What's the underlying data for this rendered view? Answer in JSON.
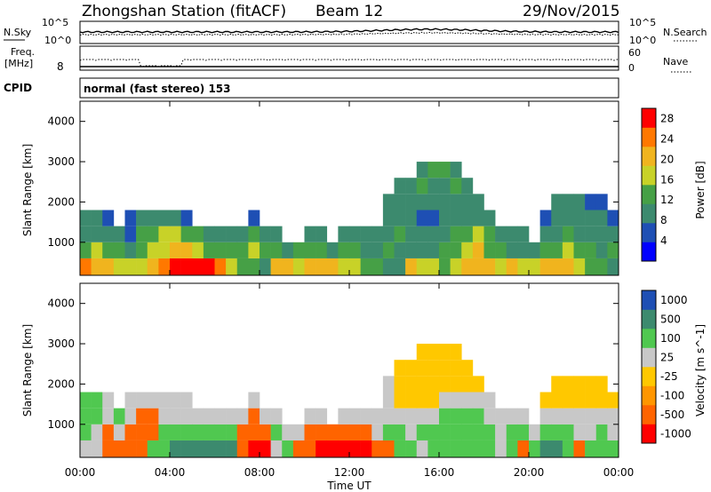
{
  "header": {
    "station": "Zhongshan Station (fitACF)",
    "beam": "Beam 12",
    "date": "29/Nov/2015"
  },
  "top_panels": {
    "nsky_label": "N.Sky",
    "nsky_ticks": [
      "10^5",
      "10^0"
    ],
    "nsearch_label": "N.Search",
    "nsearch_ticks": [
      "10^5",
      "10^0"
    ],
    "freq_label": "Freq.",
    "freq_unit": "[MHz]",
    "freq_ticks": [
      "8"
    ],
    "nave_label": "Nave",
    "nave_ticks": [
      "60",
      "0"
    ],
    "cpid_label": "CPID",
    "cpid_text": "normal (fast stereo) 153"
  },
  "colors": {
    "power_scale": [
      "#0000ff",
      "#1e4fb4",
      "#3c8a6e",
      "#46a046",
      "#c8d228",
      "#f0b41e",
      "#ff7800",
      "#ff0000"
    ],
    "velocity_scale": [
      "#ff0000",
      "#ff6400",
      "#ff9600",
      "#ffc800",
      "#c8c8c8",
      "#50c850",
      "#3c8a6e",
      "#1e4fb4"
    ]
  },
  "chart_data": [
    {
      "type": "heatmap",
      "panel": "power",
      "ylabel": "Slant Range [km]",
      "y_ticks": [
        "1000",
        "2000",
        "3000",
        "4000"
      ],
      "ylim": [
        180,
        4500
      ],
      "colorbar": {
        "label": "Power [dB]",
        "ticks": [
          "4",
          "8",
          "12",
          "16",
          "20",
          "24",
          "28"
        ],
        "range": [
          0,
          30
        ]
      },
      "x_hours": [
        0,
        0.5,
        1,
        1.5,
        2,
        2.5,
        3,
        3.5,
        4,
        4.5,
        5,
        5.5,
        6,
        6.5,
        7,
        7.5,
        8,
        8.5,
        9,
        9.5,
        10,
        10.5,
        11,
        11.5,
        12,
        12.5,
        13,
        13.5,
        14,
        14.5,
        15,
        15.5,
        16,
        16.5,
        17,
        17.5,
        18,
        18.5,
        19,
        19.5,
        20,
        20.5,
        21,
        21.5,
        22,
        22.5,
        23,
        23.5
      ],
      "range_bins_km": [
        400,
        800,
        1200,
        1600,
        2000,
        2400,
        2800
      ],
      "values_db": [
        [
          24,
          14,
          10,
          10,
          0,
          0,
          0
        ],
        [
          22,
          16,
          10,
          8,
          0,
          0,
          0
        ],
        [
          20,
          12,
          8,
          6,
          0,
          0,
          0
        ],
        [
          18,
          12,
          8,
          0,
          0,
          0,
          0
        ],
        [
          16,
          10,
          6,
          6,
          0,
          0,
          0
        ],
        [
          18,
          14,
          12,
          8,
          0,
          0,
          0
        ],
        [
          22,
          16,
          14,
          8,
          0,
          0,
          0
        ],
        [
          26,
          18,
          16,
          8,
          0,
          0,
          0
        ],
        [
          28,
          20,
          16,
          8,
          0,
          0,
          0
        ],
        [
          28,
          22,
          14,
          6,
          0,
          0,
          0
        ],
        [
          28,
          18,
          12,
          0,
          0,
          0,
          0
        ],
        [
          28,
          14,
          10,
          0,
          0,
          0,
          0
        ],
        [
          24,
          12,
          8,
          0,
          0,
          0,
          0
        ],
        [
          16,
          12,
          8,
          0,
          0,
          0,
          0
        ],
        [
          12,
          14,
          10,
          0,
          0,
          0,
          0
        ],
        [
          12,
          16,
          12,
          6,
          0,
          0,
          0
        ],
        [
          10,
          12,
          8,
          0,
          0,
          0,
          0
        ],
        [
          22,
          12,
          8,
          0,
          0,
          0,
          0
        ],
        [
          20,
          8,
          0,
          0,
          0,
          0,
          0
        ],
        [
          18,
          12,
          0,
          0,
          0,
          0,
          0
        ],
        [
          22,
          14,
          8,
          0,
          0,
          0,
          0
        ],
        [
          20,
          12,
          8,
          0,
          0,
          0,
          0
        ],
        [
          22,
          10,
          0,
          0,
          0,
          0,
          0
        ],
        [
          18,
          12,
          8,
          0,
          0,
          0,
          0
        ],
        [
          16,
          12,
          8,
          0,
          0,
          0,
          0
        ],
        [
          12,
          10,
          8,
          0,
          0,
          0,
          0
        ],
        [
          14,
          10,
          8,
          0,
          0,
          0,
          0
        ],
        [
          10,
          12,
          8,
          8,
          8,
          0,
          0
        ],
        [
          8,
          10,
          12,
          10,
          10,
          8,
          0
        ],
        [
          22,
          10,
          8,
          8,
          8,
          8,
          0
        ],
        [
          18,
          10,
          8,
          6,
          10,
          12,
          8
        ],
        [
          16,
          10,
          8,
          6,
          8,
          10,
          12
        ],
        [
          14,
          12,
          10,
          8,
          8,
          10,
          12
        ],
        [
          16,
          14,
          12,
          10,
          8,
          12,
          10
        ],
        [
          20,
          18,
          14,
          10,
          8,
          8,
          0
        ],
        [
          22,
          20,
          16,
          8,
          8,
          0,
          0
        ],
        [
          20,
          14,
          12,
          8,
          0,
          0,
          0
        ],
        [
          18,
          12,
          8,
          0,
          0,
          0,
          0
        ],
        [
          22,
          10,
          8,
          0,
          0,
          0,
          0
        ],
        [
          16,
          10,
          8,
          0,
          0,
          0,
          0
        ],
        [
          18,
          10,
          0,
          0,
          0,
          0,
          0
        ],
        [
          20,
          12,
          8,
          6,
          0,
          0,
          0
        ],
        [
          22,
          14,
          10,
          8,
          8,
          0,
          0
        ],
        [
          20,
          16,
          12,
          8,
          8,
          0,
          0
        ],
        [
          16,
          12,
          10,
          8,
          8,
          0,
          0
        ],
        [
          14,
          12,
          10,
          8,
          6,
          0,
          0
        ],
        [
          12,
          10,
          8,
          8,
          6,
          0,
          0
        ],
        [
          10,
          12,
          10,
          6,
          0,
          0,
          0
        ]
      ]
    },
    {
      "type": "heatmap",
      "panel": "velocity",
      "ylabel": "Slant Range [km]",
      "xlabel": "Time UT",
      "x_ticks": [
        "00:00",
        "04:00",
        "08:00",
        "12:00",
        "16:00",
        "20:00",
        "00:00"
      ],
      "y_ticks": [
        "1000",
        "2000",
        "3000",
        "4000"
      ],
      "ylim": [
        180,
        4500
      ],
      "colorbar": {
        "label": "Velocity [m s^-1]",
        "ticks": [
          "1000",
          "500",
          "100",
          "25",
          "-25",
          "-100",
          "-500",
          "-1000"
        ]
      },
      "x_hours": [
        0,
        0.5,
        1,
        1.5,
        2,
        2.5,
        3,
        3.5,
        4,
        4.5,
        5,
        5.5,
        6,
        6.5,
        7,
        7.5,
        8,
        8.5,
        9,
        9.5,
        10,
        10.5,
        11,
        11.5,
        12,
        12.5,
        13,
        13.5,
        14,
        14.5,
        15,
        15.5,
        16,
        16.5,
        17,
        17.5,
        18,
        18.5,
        19,
        19.5,
        20,
        20.5,
        21,
        21.5,
        22,
        22.5,
        23,
        23.5
      ],
      "range_bins_km": [
        400,
        800,
        1200,
        1600,
        2000,
        2400,
        2800
      ],
      "values_ms": [
        [
          100,
          200,
          150,
          150,
          0,
          0,
          0
        ],
        [
          50,
          100,
          200,
          150,
          0,
          0,
          0
        ],
        [
          -100,
          -200,
          100,
          100,
          0,
          0,
          0
        ],
        [
          -150,
          100,
          150,
          0,
          0,
          0,
          0
        ],
        [
          -150,
          -200,
          100,
          100,
          0,
          0,
          0
        ],
        [
          -200,
          -150,
          -200,
          100,
          0,
          0,
          0
        ],
        [
          200,
          -200,
          -150,
          100,
          0,
          0,
          0
        ],
        [
          300,
          200,
          100,
          100,
          0,
          0,
          0
        ],
        [
          700,
          200,
          100,
          100,
          0,
          0,
          0
        ],
        [
          700,
          400,
          100,
          100,
          0,
          0,
          0
        ],
        [
          600,
          400,
          100,
          0,
          0,
          0,
          0
        ],
        [
          800,
          300,
          100,
          0,
          0,
          0,
          0
        ],
        [
          900,
          500,
          100,
          0,
          0,
          0,
          0
        ],
        [
          800,
          200,
          100,
          0,
          0,
          0,
          0
        ],
        [
          -300,
          -200,
          100,
          0,
          0,
          0,
          0
        ],
        [
          -600,
          -400,
          -200,
          100,
          0,
          0,
          0
        ],
        [
          -500,
          -300,
          100,
          0,
          0,
          0,
          0
        ],
        [
          100,
          200,
          100,
          0,
          0,
          0,
          0
        ],
        [
          200,
          100,
          0,
          0,
          0,
          0,
          0
        ],
        [
          -300,
          100,
          0,
          0,
          0,
          0,
          0
        ],
        [
          -400,
          -200,
          100,
          0,
          0,
          0,
          0
        ],
        [
          -700,
          -300,
          100,
          0,
          0,
          0,
          0
        ],
        [
          -800,
          -200,
          0,
          0,
          0,
          0,
          0
        ],
        [
          -700,
          -400,
          100,
          0,
          0,
          0,
          0
        ],
        [
          -800,
          -300,
          100,
          0,
          0,
          0,
          0
        ],
        [
          -600,
          -200,
          100,
          0,
          0,
          0,
          0
        ],
        [
          -300,
          100,
          100,
          0,
          0,
          0,
          0
        ],
        [
          -200,
          150,
          100,
          100,
          100,
          0,
          0
        ],
        [
          200,
          150,
          100,
          10,
          10,
          10,
          0
        ],
        [
          150,
          100,
          100,
          10,
          10,
          10,
          0
        ],
        [
          100,
          150,
          100,
          10,
          10,
          10,
          10
        ],
        [
          150,
          200,
          100,
          10,
          10,
          10,
          10
        ],
        [
          200,
          150,
          150,
          100,
          10,
          10,
          10
        ],
        [
          150,
          200,
          200,
          100,
          10,
          10,
          10
        ],
        [
          200,
          200,
          150,
          100,
          10,
          10,
          0
        ],
        [
          150,
          200,
          200,
          100,
          10,
          0,
          0
        ],
        [
          200,
          150,
          100,
          100,
          0,
          0,
          0
        ],
        [
          100,
          100,
          100,
          0,
          0,
          0,
          0
        ],
        [
          200,
          150,
          100,
          0,
          0,
          0,
          0
        ],
        [
          -200,
          150,
          100,
          0,
          0,
          0,
          0
        ],
        [
          150,
          100,
          0,
          0,
          0,
          0,
          0
        ],
        [
          600,
          200,
          100,
          10,
          0,
          0,
          0
        ],
        [
          800,
          300,
          100,
          10,
          10,
          0,
          0
        ],
        [
          200,
          150,
          100,
          10,
          10,
          0,
          0
        ],
        [
          -200,
          100,
          100,
          10,
          10,
          0,
          0
        ],
        [
          150,
          100,
          100,
          10,
          10,
          0,
          0
        ],
        [
          200,
          150,
          100,
          10,
          10,
          0,
          0
        ],
        [
          150,
          100,
          100,
          10,
          0,
          0,
          0
        ]
      ]
    }
  ]
}
